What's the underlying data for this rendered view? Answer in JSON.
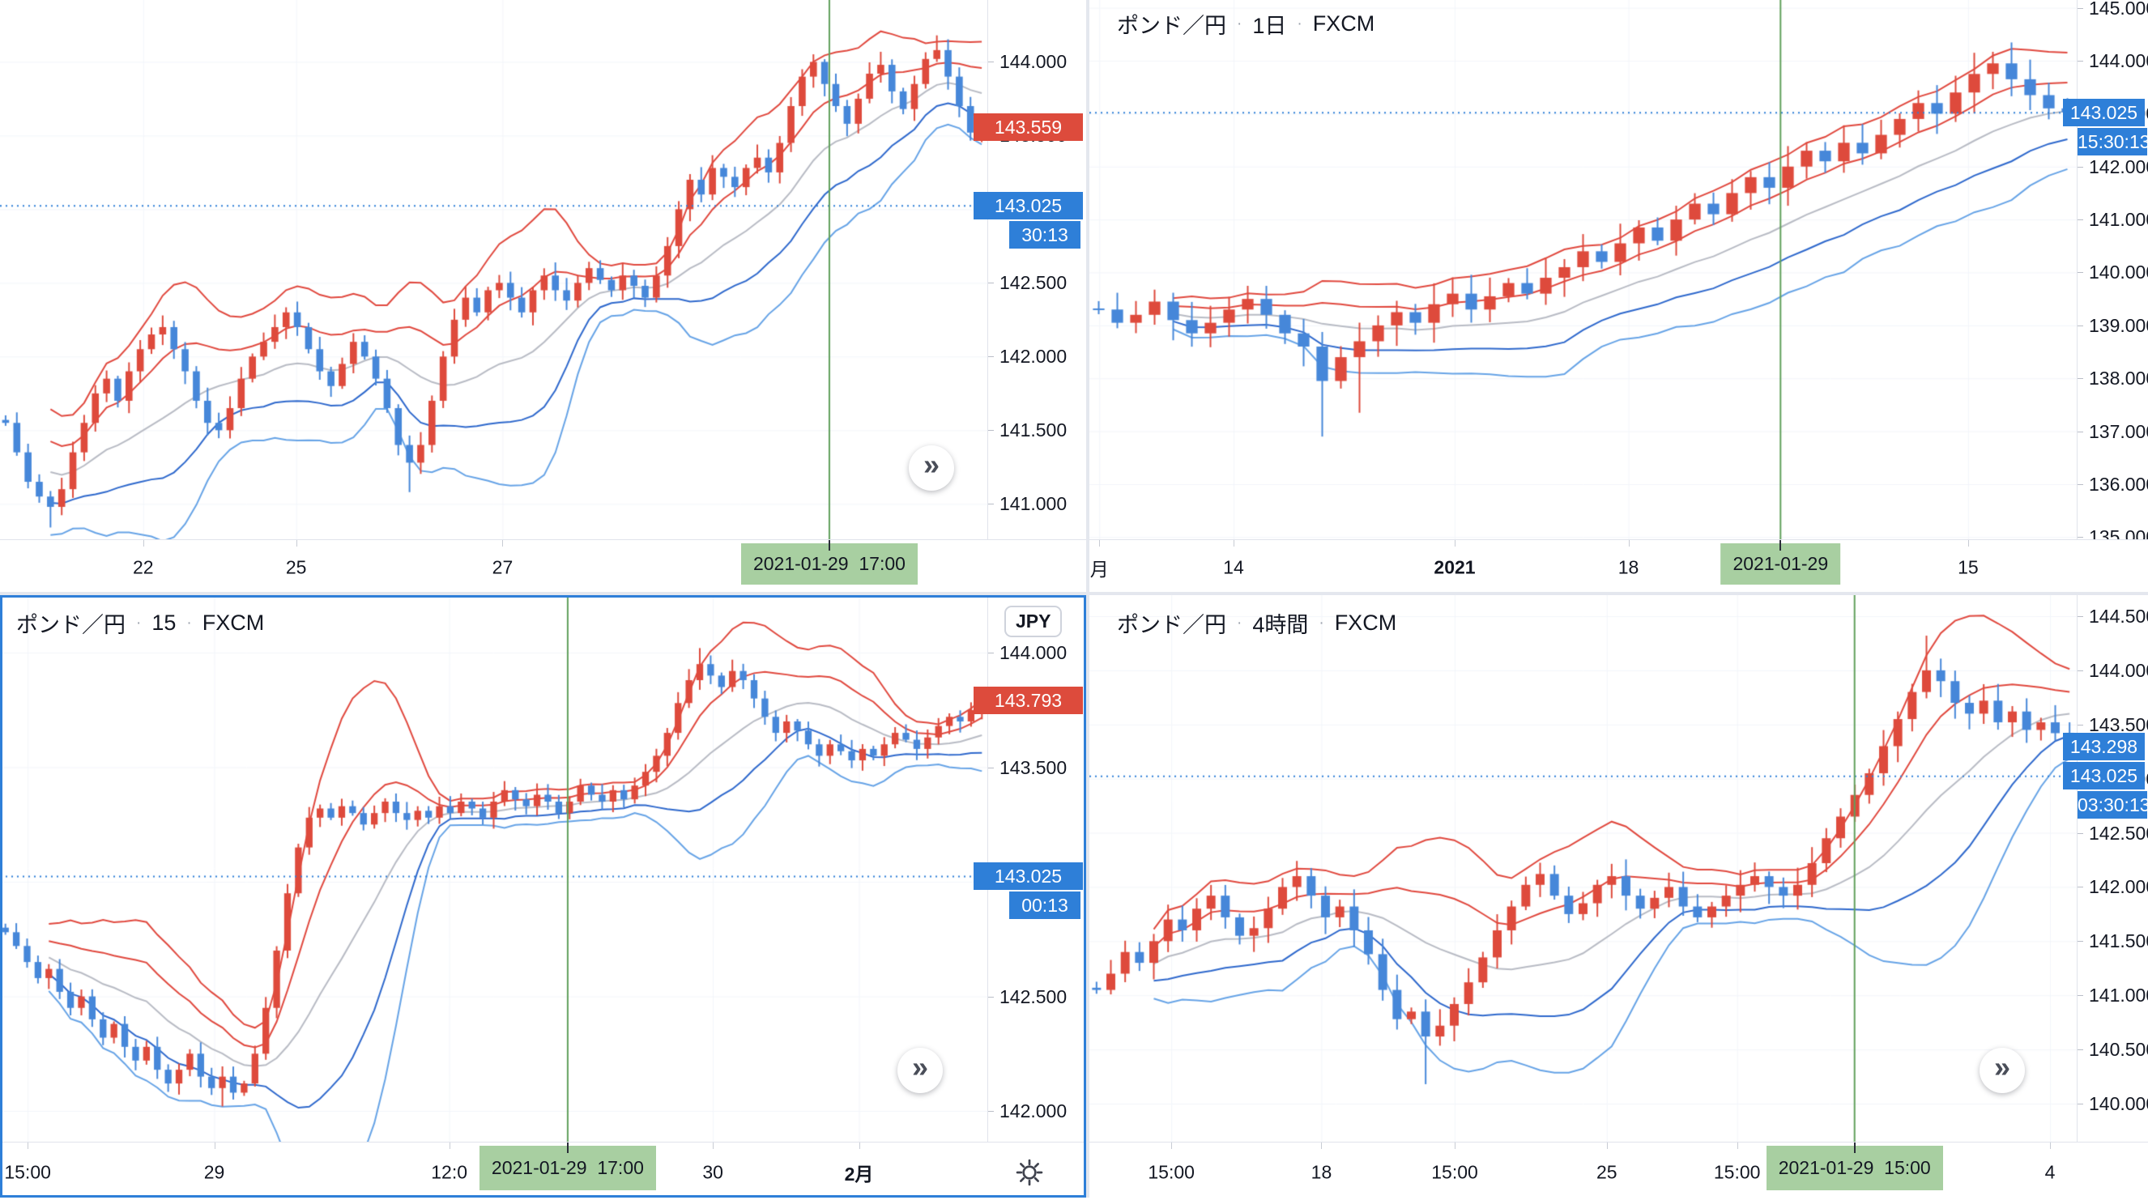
{
  "ui": {
    "separator": "·",
    "unit_button": "JPY",
    "jump_icon": "»",
    "current_price": "143.025",
    "colors": {
      "up": "#de4a3c",
      "down": "#4687d9",
      "label_red": "#dd4b3c",
      "label_blue": "#2e7fd8",
      "band_red": "#e0483e",
      "band_mid": "#b8bbc4",
      "band_blue_dark": "#2e68cc",
      "band_blue_light": "#66a3e6",
      "marker_green": "#61a05c",
      "marker_label_bg": "#a8cfa1",
      "axis_text": "#131722",
      "grid": "#f2f5fa",
      "current_line": "#2e7fd8"
    }
  },
  "chart_data": [
    {
      "type": "candlestick",
      "title_visible": false,
      "ylim": [
        140.76,
        144.42
      ],
      "y_ticks": [
        {
          "v": 141.0,
          "t": "141.000"
        },
        {
          "v": 141.5,
          "t": "141.500"
        },
        {
          "v": 142.0,
          "t": "142.000"
        },
        {
          "v": 142.5,
          "t": "142.500"
        },
        {
          "v": 143.0,
          "t": "143.000"
        },
        {
          "v": 143.5,
          "t": "143.500"
        },
        {
          "v": 144.0,
          "t": "144.000"
        }
      ],
      "x_ticks": [
        {
          "f": 0.145,
          "t": "22"
        },
        {
          "f": 0.3,
          "t": "25"
        },
        {
          "f": 0.509,
          "t": "27"
        }
      ],
      "marker": {
        "f": 0.84,
        "t": "2021-01-29  17:00"
      },
      "last_chip": {
        "t": "143.559",
        "v": 143.559,
        "dir": "up"
      },
      "current_chip": {
        "t": "143.025",
        "v": 143.025
      },
      "countdown": {
        "t": "30:13",
        "style": "narrow"
      },
      "band_window": 14,
      "wick_amp": 0.09,
      "wick_lows": {
        "4": 140.84,
        "36": 141.08
      },
      "wick_highs": {
        "83": 144.18
      },
      "closes": [
        141.55,
        141.35,
        141.15,
        141.05,
        140.98,
        141.1,
        141.35,
        141.55,
        141.75,
        141.85,
        141.7,
        141.9,
        142.05,
        142.15,
        142.2,
        142.05,
        141.9,
        141.7,
        141.55,
        141.5,
        141.65,
        141.85,
        142.0,
        142.1,
        142.2,
        142.3,
        142.2,
        142.05,
        141.9,
        141.8,
        141.95,
        142.1,
        142.0,
        141.85,
        141.65,
        141.4,
        141.28,
        141.4,
        141.7,
        142.0,
        142.25,
        142.4,
        142.3,
        142.45,
        142.5,
        142.4,
        142.3,
        142.45,
        142.55,
        142.45,
        142.38,
        142.5,
        142.6,
        142.52,
        142.45,
        142.55,
        142.48,
        142.4,
        142.55,
        142.75,
        143.0,
        143.2,
        143.1,
        143.28,
        143.22,
        143.15,
        143.28,
        143.35,
        143.25,
        143.45,
        143.7,
        143.9,
        144.0,
        143.85,
        143.7,
        143.58,
        143.75,
        143.92,
        143.98,
        143.8,
        143.68,
        143.85,
        144.02,
        144.08,
        143.9,
        143.7,
        143.52,
        143.559
      ]
    },
    {
      "type": "candlestick",
      "title_visible": true,
      "symbol": "ポンド／円",
      "interval": "1日",
      "exchange": "FXCM",
      "ylim": [
        134.96,
        145.147
      ],
      "y_ticks": [
        {
          "v": 135.0,
          "t": "135.000"
        },
        {
          "v": 136.0,
          "t": "136.000"
        },
        {
          "v": 137.0,
          "t": "137.000"
        },
        {
          "v": 138.0,
          "t": "138.000"
        },
        {
          "v": 139.0,
          "t": "139.000"
        },
        {
          "v": 140.0,
          "t": "140.000"
        },
        {
          "v": 141.0,
          "t": "141.000"
        },
        {
          "v": 142.0,
          "t": "142.000"
        },
        {
          "v": 143.0,
          "t": "143.000"
        },
        {
          "v": 144.0,
          "t": "144.000"
        },
        {
          "v": 145.0,
          "t": "145.000"
        }
      ],
      "x_ticks": [
        {
          "f": 0.01,
          "t": "月"
        },
        {
          "f": 0.146,
          "t": "14"
        },
        {
          "f": 0.37,
          "t": "2021",
          "bold": true
        },
        {
          "f": 0.546,
          "t": "18"
        },
        {
          "f": 0.89,
          "t": "15"
        }
      ],
      "marker": {
        "f": 0.7,
        "t": "2021-01-29"
      },
      "last_chip": null,
      "current_chip": {
        "t": "143.025",
        "v": 143.025
      },
      "countdown": {
        "t": "15:30:13",
        "style": "full"
      },
      "band_window": 14,
      "wick_amp": 0.4,
      "wick_lows": {
        "12": 136.9,
        "14": 137.35
      },
      "wick_highs": {
        "47": 144.15
      },
      "closes": [
        139.3,
        139.05,
        139.2,
        139.45,
        139.1,
        138.85,
        139.05,
        139.3,
        139.5,
        139.2,
        138.85,
        138.6,
        137.95,
        138.4,
        138.7,
        139.0,
        139.25,
        139.05,
        139.4,
        139.6,
        139.3,
        139.55,
        139.8,
        139.6,
        139.9,
        140.1,
        140.4,
        140.2,
        140.55,
        140.85,
        140.6,
        141.0,
        141.3,
        141.1,
        141.5,
        141.8,
        141.6,
        142.0,
        142.3,
        142.1,
        142.45,
        142.25,
        142.6,
        142.9,
        143.2,
        143.0,
        143.4,
        143.75,
        143.95,
        143.65,
        143.35,
        143.1,
        143.025
      ]
    },
    {
      "type": "candlestick",
      "title_visible": true,
      "symbol": "ポンド／円",
      "interval": "15",
      "exchange": "FXCM",
      "ylim": [
        141.866,
        144.251
      ],
      "y_ticks": [
        {
          "v": 142.0,
          "t": "142.000"
        },
        {
          "v": 142.5,
          "t": "142.500"
        },
        {
          "v": 143.0,
          "t": "143.000"
        },
        {
          "v": 143.5,
          "t": "143.500"
        },
        {
          "v": 144.0,
          "t": "144.000"
        }
      ],
      "x_ticks": [
        {
          "f": 0.028,
          "t": "15:00"
        },
        {
          "f": 0.217,
          "t": "29"
        },
        {
          "f": 0.455,
          "t": "12:0"
        },
        {
          "f": 0.722,
          "t": "30"
        },
        {
          "f": 0.87,
          "t": "2月",
          "bold": true
        }
      ],
      "marker": {
        "f": 0.575,
        "t": "2021-01-29  17:00"
      },
      "last_chip": {
        "t": "143.793",
        "v": 143.793,
        "dir": "up"
      },
      "current_chip": {
        "t": "143.025",
        "v": 143.025
      },
      "countdown": {
        "t": "00:13",
        "style": "narrow"
      },
      "band_window": 14,
      "wick_amp": 0.05,
      "wick_lows": {
        "20": 142.02
      },
      "wick_highs": {
        "64": 144.02
      },
      "closes": [
        142.78,
        142.72,
        142.65,
        142.58,
        142.62,
        142.52,
        142.45,
        142.5,
        142.4,
        142.32,
        142.38,
        142.28,
        142.22,
        142.28,
        142.18,
        142.12,
        142.18,
        142.25,
        142.15,
        142.1,
        142.15,
        142.08,
        142.12,
        142.25,
        142.45,
        142.7,
        142.95,
        143.15,
        143.28,
        143.32,
        143.28,
        143.33,
        143.3,
        143.25,
        143.3,
        143.35,
        143.3,
        143.27,
        143.31,
        143.28,
        143.33,
        143.3,
        143.35,
        143.32,
        143.28,
        143.35,
        143.4,
        143.36,
        143.33,
        143.38,
        143.35,
        143.3,
        143.35,
        143.42,
        143.38,
        143.35,
        143.4,
        143.36,
        143.42,
        143.48,
        143.55,
        143.65,
        143.78,
        143.88,
        143.95,
        143.9,
        143.85,
        143.92,
        143.88,
        143.8,
        143.72,
        143.65,
        143.7,
        143.66,
        143.6,
        143.55,
        143.6,
        143.57,
        143.53,
        143.58,
        143.55,
        143.6,
        143.65,
        143.62,
        143.58,
        143.63,
        143.68,
        143.72,
        143.7,
        143.75,
        143.793
      ]
    },
    {
      "type": "candlestick",
      "title_visible": true,
      "symbol": "ポンド／円",
      "interval": "4時間",
      "exchange": "FXCM",
      "ylim": [
        139.649,
        144.694
      ],
      "y_ticks": [
        {
          "v": 140.0,
          "t": "140.000"
        },
        {
          "v": 140.5,
          "t": "140.500"
        },
        {
          "v": 141.0,
          "t": "141.000"
        },
        {
          "v": 141.5,
          "t": "141.500"
        },
        {
          "v": 142.0,
          "t": "142.000"
        },
        {
          "v": 142.5,
          "t": "142.500"
        },
        {
          "v": 143.0,
          "t": "143.000"
        },
        {
          "v": 143.5,
          "t": "143.500"
        },
        {
          "v": 144.0,
          "t": "144.000"
        },
        {
          "v": 144.5,
          "t": "144.500"
        }
      ],
      "x_ticks": [
        {
          "f": 0.083,
          "t": "15:00"
        },
        {
          "f": 0.235,
          "t": "18"
        },
        {
          "f": 0.37,
          "t": "15:00"
        },
        {
          "f": 0.524,
          "t": "25"
        },
        {
          "f": 0.656,
          "t": "15:00"
        },
        {
          "f": 0.973,
          "t": "4"
        }
      ],
      "marker": {
        "f": 0.775,
        "t": "2021-01-29  15:00"
      },
      "last_chip": {
        "t": "143.298",
        "v": 143.298,
        "dir": "down"
      },
      "current_chip": {
        "t": "143.025",
        "v": 143.025
      },
      "countdown": {
        "t": "03:30:13",
        "style": "full"
      },
      "band_window": 14,
      "wick_amp": 0.16,
      "wick_lows": {
        "23": 140.18
      },
      "wick_highs": {
        "58": 144.32
      },
      "closes": [
        141.05,
        141.2,
        141.4,
        141.3,
        141.5,
        141.7,
        141.6,
        141.8,
        141.92,
        141.72,
        141.55,
        141.62,
        141.8,
        142.0,
        142.1,
        141.92,
        141.72,
        141.82,
        141.6,
        141.38,
        141.05,
        140.78,
        140.85,
        140.62,
        140.72,
        140.92,
        141.12,
        141.35,
        141.6,
        141.82,
        142.02,
        142.12,
        141.92,
        141.75,
        141.85,
        142.02,
        142.1,
        141.92,
        141.8,
        141.9,
        142.0,
        141.82,
        141.72,
        141.82,
        141.92,
        142.02,
        142.1,
        142.0,
        141.92,
        142.02,
        142.22,
        142.45,
        142.65,
        142.85,
        143.05,
        143.3,
        143.55,
        143.8,
        144.0,
        143.9,
        143.7,
        143.6,
        143.72,
        143.52,
        143.62,
        143.45,
        143.52,
        143.42,
        143.298
      ]
    }
  ]
}
